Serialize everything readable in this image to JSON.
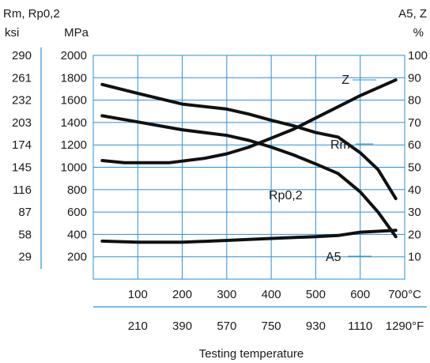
{
  "chart_data": {
    "type": "line",
    "title": "",
    "xlabel": "Testing temperature",
    "grid": true,
    "x_c_ticks": [
      "100",
      "200",
      "300",
      "400",
      "500",
      "600",
      "700°C"
    ],
    "x_f_ticks": [
      "210",
      "390",
      "570",
      "750",
      "930",
      "1110",
      "1290°F"
    ],
    "xlim_c": [
      0,
      700
    ],
    "left_label_top": "Rm, Rp0,2",
    "left_ksi_unit": "ksi",
    "left_mpa_unit": "MPa",
    "ksi_ticks": [
      "290",
      "261",
      "232",
      "203",
      "174",
      "145",
      "116",
      "87",
      "58",
      "29"
    ],
    "mpa_ticks": [
      "2000",
      "1800",
      "1600",
      "1400",
      "1200",
      "1000",
      "800",
      "600",
      "400",
      "200"
    ],
    "ylim_mpa": [
      0,
      2000
    ],
    "right_label_top": "A5, Z",
    "right_unit": "%",
    "pct_ticks": [
      "100",
      "90",
      "80",
      "70",
      "60",
      "50",
      "40",
      "30",
      "20",
      "10"
    ],
    "ylim_pct": [
      0,
      100
    ],
    "series": [
      {
        "name": "Rm",
        "axis": "MPa",
        "x": [
          20,
          100,
          200,
          300,
          350,
          400,
          450,
          500,
          550,
          600,
          640,
          680
        ],
        "y": [
          1740,
          1660,
          1565,
          1520,
          1475,
          1420,
          1370,
          1310,
          1270,
          1130,
          980,
          720
        ]
      },
      {
        "name": "Rp0,2",
        "axis": "MPa",
        "x": [
          20,
          100,
          200,
          300,
          350,
          400,
          450,
          500,
          550,
          600,
          640,
          680
        ],
        "y": [
          1460,
          1405,
          1335,
          1285,
          1240,
          1180,
          1110,
          1030,
          945,
          780,
          600,
          380
        ]
      },
      {
        "name": "Z",
        "axis": "%",
        "x": [
          20,
          70,
          170,
          250,
          300,
          350,
          400,
          450,
          500,
          550,
          600,
          680
        ],
        "y": [
          53,
          52,
          52,
          54,
          56,
          59,
          63,
          67,
          72,
          77,
          82,
          89
        ]
      },
      {
        "name": "A5",
        "axis": "%",
        "x": [
          20,
          100,
          200,
          300,
          400,
          500,
          550,
          600,
          680
        ],
        "y": [
          17,
          16.5,
          16.5,
          17.3,
          18.2,
          19,
          19.5,
          21,
          21.8
        ]
      }
    ]
  }
}
